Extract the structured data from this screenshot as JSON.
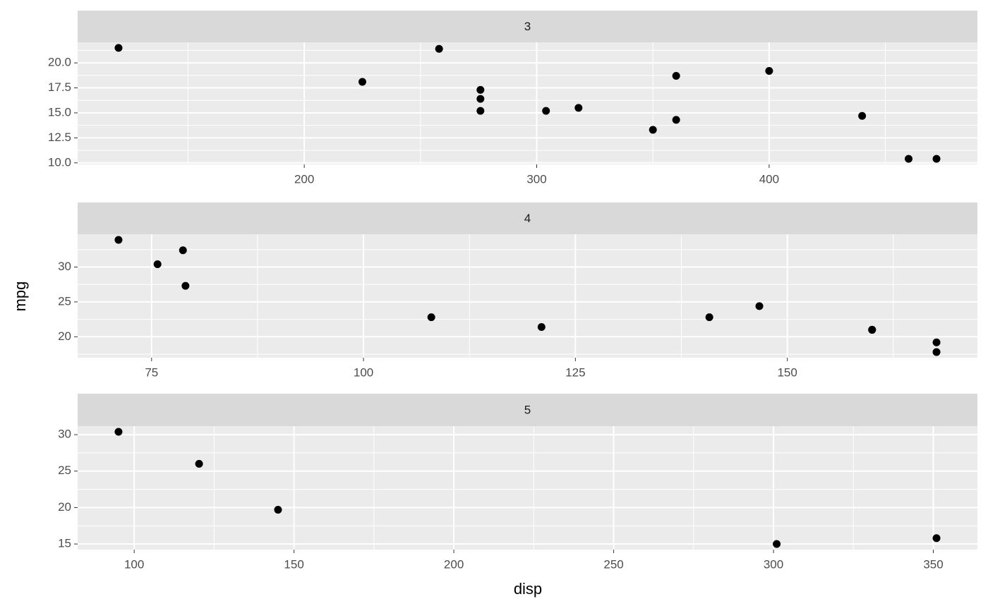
{
  "x_label": "disp",
  "y_label": "mpg",
  "chart_data": [
    {
      "type": "scatter",
      "title": "3",
      "color": "#000000",
      "grid": true,
      "x": [
        258,
        360,
        225,
        360,
        275.8,
        275.8,
        275.8,
        472,
        460,
        440,
        120.1,
        318,
        304,
        350,
        400
      ],
      "values": [
        21.4,
        18.7,
        18.1,
        14.3,
        16.4,
        17.3,
        15.2,
        10.4,
        10.4,
        14.7,
        21.5,
        15.5,
        15.2,
        13.3,
        19.2
      ],
      "xlim": [
        102.5,
        489.6
      ],
      "xticks": [
        200,
        300,
        400
      ],
      "ylim": [
        9.845,
        22.055
      ],
      "yticks": [
        {
          "value": 10,
          "label": "10.0"
        },
        12.5,
        {
          "value": 15,
          "label": "15.0"
        },
        17.5,
        {
          "value": 20,
          "label": "20.0"
        }
      ]
    },
    {
      "type": "scatter",
      "title": "4",
      "color": "#000000",
      "grid": true,
      "x": [
        160,
        160,
        108,
        146.7,
        140.8,
        167.6,
        167.6,
        78.7,
        75.7,
        71.1,
        79,
        121
      ],
      "values": [
        21,
        21,
        22.8,
        24.4,
        22.8,
        19.2,
        17.8,
        32.4,
        30.4,
        33.9,
        27.3,
        21.4
      ],
      "xlim": [
        66.275,
        172.425
      ],
      "xticks": [
        75,
        100,
        125,
        150
      ],
      "ylim": [
        16.995,
        34.705
      ],
      "yticks": [
        20,
        25,
        30
      ]
    },
    {
      "type": "scatter",
      "title": "5",
      "color": "#000000",
      "grid": true,
      "x": [
        120.3,
        95.1,
        351,
        145,
        301
      ],
      "values": [
        26,
        30.4,
        15.8,
        19.7,
        15
      ],
      "xlim": [
        82.305,
        363.795
      ],
      "xticks": [
        100,
        150,
        200,
        250,
        300,
        350
      ],
      "ylim": [
        14.23,
        31.17
      ],
      "yticks": [
        15,
        20,
        25,
        30
      ]
    }
  ]
}
